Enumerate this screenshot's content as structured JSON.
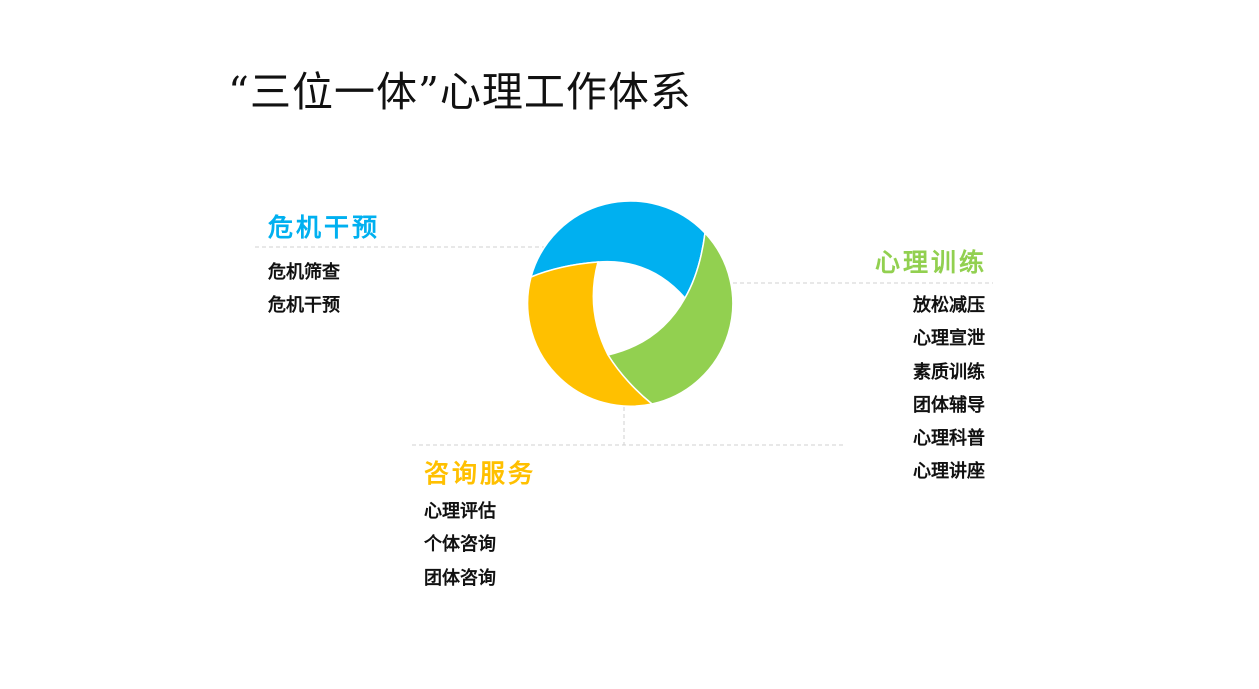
{
  "title": "“三位一体”心理工作体系",
  "colors": {
    "crisis": "#00B0F0",
    "training": "#92D050",
    "counseling": "#FFC000",
    "divider": "#D0D0D0"
  },
  "sections": {
    "crisis": {
      "heading": "危机干预",
      "items": [
        "危机筛查",
        "危机干预"
      ]
    },
    "training": {
      "heading": "心理训练",
      "items": [
        "放松减压",
        "心理宣泄",
        "素质训练",
        "团体辅导",
        "心理科普",
        "心理讲座"
      ]
    },
    "counseling": {
      "heading": "咨询服务",
      "items": [
        "心理评估",
        "个体咨询",
        "团体咨询"
      ]
    }
  }
}
